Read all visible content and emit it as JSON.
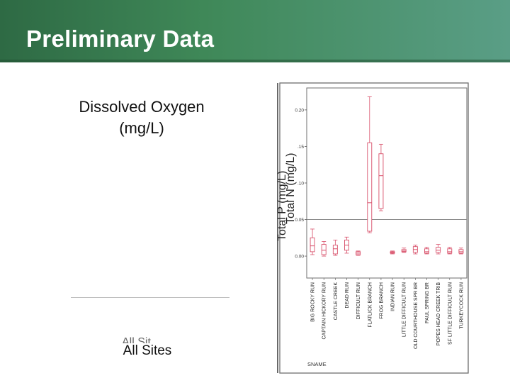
{
  "slide": {
    "title": "Preliminary Data",
    "left_label": "Dissolved Oxygen\n(mg/L)",
    "bottom_label": "All Sites",
    "bottom_ghost": "All Sit"
  },
  "chart_data": {
    "type": "box",
    "ylabel_overlaid": [
      "Total P (mg/L)",
      "Total N (mg/L)"
    ],
    "xlabel": "SNAME",
    "ylim": [
      -0.03,
      0.23
    ],
    "yticks": [
      "0.00",
      "0.05",
      ".10",
      ".15",
      "0.20"
    ],
    "ytick_values": [
      0.0,
      0.05,
      0.1,
      0.15,
      0.2
    ],
    "reference_line": 0.05,
    "color": "#d8506a",
    "categories": [
      "BIG ROCKY RUN",
      "CAPTAIN HICKORY RUN",
      "CASTLE CREEK",
      "DEAD RUN",
      "DIFFICULT RUN",
      "FLATLICK BRANCH",
      "FROG BRANCH",
      "INDIAN RUN",
      "LITTLE DIFFICULT RUN",
      "OLD COURTHOUSE SPR BR",
      "PAUL SPRING BR",
      "POPES HEAD CREEK TRIB",
      "SF LITTLE DIFFICULT RUN",
      "TURKEYCOCK RUN"
    ],
    "boxes": [
      {
        "min": 0.002,
        "q1": 0.006,
        "median": 0.014,
        "q3": 0.025,
        "max": 0.037
      },
      {
        "min": 0.0,
        "q1": 0.002,
        "median": 0.008,
        "q3": 0.016,
        "max": 0.02
      },
      {
        "min": 0.001,
        "q1": 0.003,
        "median": 0.01,
        "q3": 0.015,
        "max": 0.022
      },
      {
        "min": 0.004,
        "q1": 0.008,
        "median": 0.015,
        "q3": 0.022,
        "max": 0.026
      },
      {
        "min": 0.001,
        "q1": 0.002,
        "median": 0.004,
        "q3": 0.006,
        "max": 0.007
      },
      {
        "min": 0.032,
        "q1": 0.034,
        "median": 0.073,
        "q3": 0.155,
        "max": 0.218
      },
      {
        "min": 0.062,
        "q1": 0.065,
        "median": 0.11,
        "q3": 0.14,
        "max": 0.153
      },
      {
        "min": 0.003,
        "q1": 0.004,
        "median": 0.005,
        "q3": 0.006,
        "max": 0.007
      },
      {
        "min": 0.005,
        "q1": 0.006,
        "median": 0.007,
        "q3": 0.009,
        "max": 0.011
      },
      {
        "min": 0.003,
        "q1": 0.005,
        "median": 0.009,
        "q3": 0.013,
        "max": 0.015
      },
      {
        "min": 0.003,
        "q1": 0.004,
        "median": 0.006,
        "q3": 0.01,
        "max": 0.012
      },
      {
        "min": 0.003,
        "q1": 0.005,
        "median": 0.008,
        "q3": 0.012,
        "max": 0.016
      },
      {
        "min": 0.003,
        "q1": 0.004,
        "median": 0.006,
        "q3": 0.01,
        "max": 0.012
      },
      {
        "min": 0.003,
        "q1": 0.004,
        "median": 0.006,
        "q3": 0.009,
        "max": 0.011
      }
    ]
  }
}
